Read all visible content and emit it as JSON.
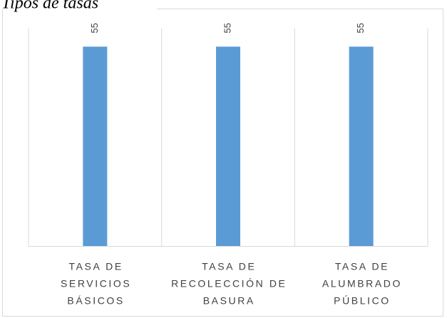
{
  "chart_data": {
    "type": "bar",
    "title": "Tipos de tasas",
    "categories": [
      [
        "TASA DE",
        "SERVICIOS",
        "BÁSICOS"
      ],
      [
        "TASA DE",
        "RECOLECCIÓN DE",
        "BASURA"
      ],
      [
        "TASA DE",
        "ALUMBRADO",
        "PÚBLICO"
      ]
    ],
    "values": [
      55,
      55,
      55
    ],
    "color": "#5b9bd5",
    "ylim": [
      0,
      60
    ]
  }
}
